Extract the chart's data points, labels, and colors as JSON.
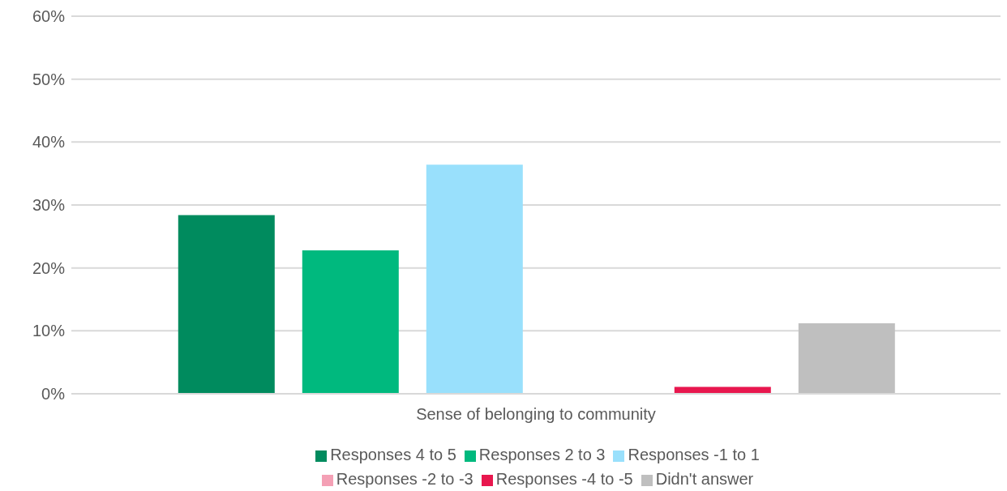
{
  "chart_data": {
    "type": "bar",
    "categories": [
      "Sense of belonging to community"
    ],
    "series": [
      {
        "name": "Responses 4 to 5",
        "color": "#008b5e",
        "values": [
          28.4
        ]
      },
      {
        "name": "Responses 2 to 3",
        "color": "#00b97e",
        "values": [
          22.8
        ]
      },
      {
        "name": "Responses -1 to 1",
        "color": "#99e0fc",
        "values": [
          36.4
        ]
      },
      {
        "name": "Responses -2 to -3",
        "color": "#f4a0b5",
        "values": [
          0
        ]
      },
      {
        "name": "Responses -4 to -5",
        "color": "#e8174e",
        "values": [
          1.1
        ]
      },
      {
        "name": "Didn't answer",
        "color": "#bfbfbf",
        "values": [
          11.2
        ]
      }
    ],
    "ylim": [
      0,
      60
    ],
    "yticks": [
      {
        "value": 0,
        "label": "0%"
      },
      {
        "value": 10,
        "label": "10%"
      },
      {
        "value": 20,
        "label": "20%"
      },
      {
        "value": 30,
        "label": "30%"
      },
      {
        "value": 40,
        "label": "40%"
      },
      {
        "value": 50,
        "label": "50%"
      },
      {
        "value": 60,
        "label": "60%"
      }
    ],
    "grid": "y",
    "legend": "bottom"
  }
}
